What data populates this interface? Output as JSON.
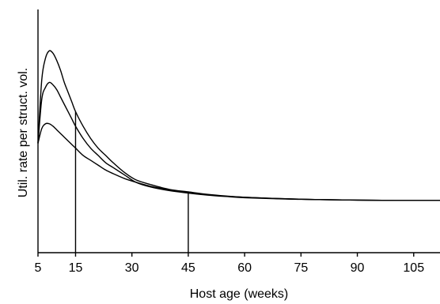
{
  "chart_data": {
    "type": "line",
    "title": "",
    "xlabel": "Host age (weeks)",
    "ylabel": "Util. rate per struct. vol.",
    "xlim": [
      5,
      112
    ],
    "ylim": [
      0,
      1
    ],
    "x_ticks": [
      5,
      15,
      30,
      45,
      60,
      75,
      90,
      105
    ],
    "y_ticks": [],
    "grid": false,
    "legend": "none",
    "vertical_lines": [
      15,
      45
    ],
    "series": [
      {
        "x": [
          5,
          6,
          7,
          8,
          9,
          10,
          11,
          12,
          13,
          14,
          15,
          17,
          19,
          21,
          23,
          25,
          28,
          31,
          35,
          40,
          45,
          50,
          55,
          60,
          70,
          80,
          90,
          100,
          112
        ],
        "y": [
          0.45,
          0.71,
          0.8,
          0.83,
          0.82,
          0.79,
          0.75,
          0.7,
          0.66,
          0.62,
          0.58,
          0.52,
          0.47,
          0.43,
          0.4,
          0.37,
          0.33,
          0.3,
          0.28,
          0.26,
          0.25,
          0.24,
          0.233,
          0.228,
          0.222,
          0.218,
          0.216,
          0.215,
          0.215
        ]
      },
      {
        "x": [
          5,
          6,
          7,
          8,
          9,
          10,
          11,
          12,
          13,
          14,
          15,
          17,
          19,
          21,
          23,
          25,
          28,
          31,
          35,
          40,
          45,
          50,
          55,
          60,
          70,
          80,
          90,
          100,
          112
        ],
        "y": [
          0.45,
          0.63,
          0.68,
          0.7,
          0.69,
          0.67,
          0.64,
          0.61,
          0.58,
          0.55,
          0.52,
          0.47,
          0.43,
          0.4,
          0.37,
          0.35,
          0.32,
          0.29,
          0.27,
          0.255,
          0.245,
          0.237,
          0.231,
          0.226,
          0.221,
          0.218,
          0.216,
          0.215,
          0.215
        ]
      },
      {
        "x": [
          5,
          6,
          7,
          8,
          9,
          10,
          11,
          12,
          13,
          15,
          17,
          19,
          21,
          23,
          25,
          28,
          31,
          35,
          40,
          45,
          50,
          55,
          60,
          70,
          80,
          90,
          100,
          112
        ],
        "y": [
          0.45,
          0.51,
          0.53,
          0.53,
          0.52,
          0.505,
          0.49,
          0.475,
          0.46,
          0.43,
          0.4,
          0.38,
          0.36,
          0.34,
          0.325,
          0.305,
          0.29,
          0.273,
          0.258,
          0.246,
          0.238,
          0.232,
          0.228,
          0.222,
          0.218,
          0.216,
          0.215,
          0.215
        ]
      }
    ]
  }
}
